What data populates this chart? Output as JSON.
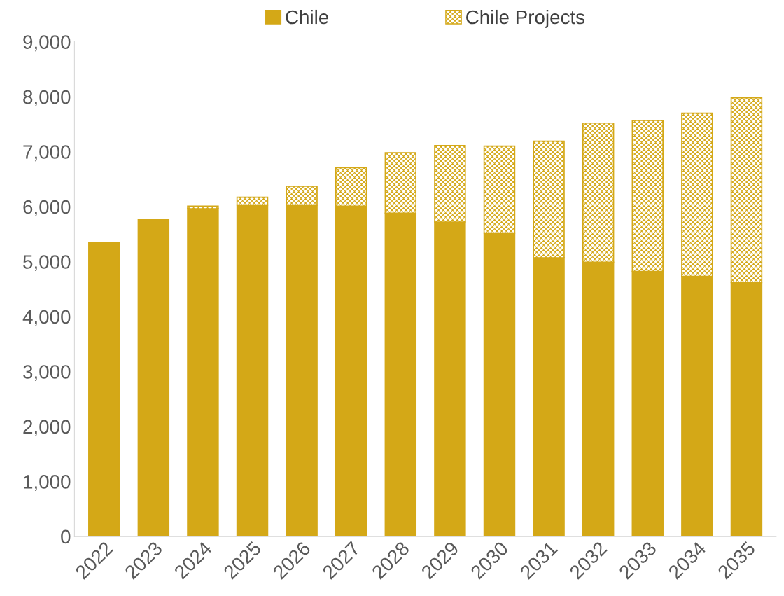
{
  "chart_data": {
    "type": "bar",
    "stacked": true,
    "categories": [
      "2022",
      "2023",
      "2024",
      "2025",
      "2026",
      "2027",
      "2028",
      "2029",
      "2030",
      "2031",
      "2032",
      "2033",
      "2034",
      "2035"
    ],
    "series": [
      {
        "name": "Chile",
        "color": "#d4a817",
        "values": [
          5350,
          5760,
          5960,
          6030,
          6030,
          6010,
          5880,
          5720,
          5520,
          5070,
          4990,
          4820,
          4730,
          4620
        ]
      },
      {
        "name": "Chile Projects",
        "color": "#d4a817",
        "values": [
          0,
          0,
          50,
          140,
          340,
          700,
          1100,
          1390,
          1580,
          2120,
          2530,
          2750,
          2970,
          3360
        ]
      }
    ],
    "ylim": [
      0,
      9000
    ],
    "yticks": [
      {
        "value": 0,
        "label": "0"
      },
      {
        "value": 1000,
        "label": "1,000"
      },
      {
        "value": 2000,
        "label": "2,000"
      },
      {
        "value": 3000,
        "label": "3,000"
      },
      {
        "value": 4000,
        "label": "4,000"
      },
      {
        "value": 5000,
        "label": "5,000"
      },
      {
        "value": 6000,
        "label": "6,000"
      },
      {
        "value": 7000,
        "label": "7,000"
      },
      {
        "value": 8000,
        "label": "8,000"
      },
      {
        "value": 9000,
        "label": "9,000"
      }
    ],
    "grid": false,
    "legend": "top"
  }
}
